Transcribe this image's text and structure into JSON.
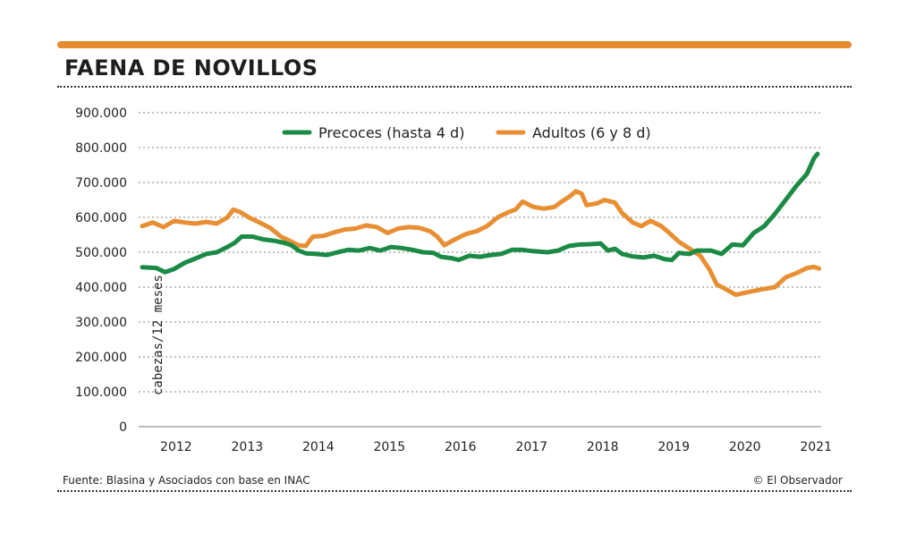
{
  "header": {
    "title": "FAENA DE NOVILLOS"
  },
  "footer": {
    "source": "Fuente: Blasina y Asociados con base en INAC",
    "credit": "© El Observador"
  },
  "colors": {
    "accent": "#e68a2e",
    "green": "#1a8a45",
    "orange": "#e88f34"
  },
  "chart_data": {
    "type": "line",
    "title": "FAENA DE NOVILLOS",
    "ylabel": "cabezas/12 meses",
    "xlabel": "",
    "ylim": [
      0,
      900000
    ],
    "xlim": [
      2011.75,
      2021.35
    ],
    "grid": true,
    "legend": "top-center",
    "y_ticks": [
      {
        "value": 0,
        "label": "0"
      },
      {
        "value": 100000,
        "label": "100.000"
      },
      {
        "value": 200000,
        "label": "200.000"
      },
      {
        "value": 300000,
        "label": "300.000"
      },
      {
        "value": 400000,
        "label": "400.000"
      },
      {
        "value": 500000,
        "label": "500.000"
      },
      {
        "value": 600000,
        "label": "600.000"
      },
      {
        "value": 700000,
        "label": "700.000"
      },
      {
        "value": 800000,
        "label": "800.000"
      },
      {
        "value": 900000,
        "label": "900.000"
      }
    ],
    "x_ticks": [
      {
        "value": 2012,
        "label": "2012"
      },
      {
        "value": 2013,
        "label": "2013"
      },
      {
        "value": 2014,
        "label": "2014"
      },
      {
        "value": 2015,
        "label": "2015"
      },
      {
        "value": 2016,
        "label": "2016"
      },
      {
        "value": 2017,
        "label": "2017"
      },
      {
        "value": 2018,
        "label": "2018"
      },
      {
        "value": 2019,
        "label": "2019"
      },
      {
        "value": 2020,
        "label": "2020"
      },
      {
        "value": 2021,
        "label": "2021"
      }
    ],
    "series": [
      {
        "name": "Precoces (hasta 4 d)",
        "color": "#1a8a45",
        "points": [
          [
            2011.8,
            457000
          ],
          [
            2012.0,
            455000
          ],
          [
            2012.12,
            443000
          ],
          [
            2012.25,
            452000
          ],
          [
            2012.4,
            470000
          ],
          [
            2012.55,
            482000
          ],
          [
            2012.7,
            495000
          ],
          [
            2012.85,
            500000
          ],
          [
            2013.0,
            515000
          ],
          [
            2013.1,
            527000
          ],
          [
            2013.2,
            545000
          ],
          [
            2013.35,
            545000
          ],
          [
            2013.5,
            537000
          ],
          [
            2013.65,
            533000
          ],
          [
            2013.8,
            527000
          ],
          [
            2013.9,
            520000
          ],
          [
            2014.0,
            505000
          ],
          [
            2014.1,
            497000
          ],
          [
            2014.25,
            495000
          ],
          [
            2014.4,
            492000
          ],
          [
            2014.55,
            500000
          ],
          [
            2014.7,
            507000
          ],
          [
            2014.85,
            505000
          ],
          [
            2015.0,
            512000
          ],
          [
            2015.15,
            505000
          ],
          [
            2015.3,
            515000
          ],
          [
            2015.45,
            512000
          ],
          [
            2015.6,
            507000
          ],
          [
            2015.75,
            500000
          ],
          [
            2015.9,
            498000
          ],
          [
            2016.0,
            487000
          ],
          [
            2016.15,
            483000
          ],
          [
            2016.25,
            478000
          ],
          [
            2016.4,
            490000
          ],
          [
            2016.55,
            487000
          ],
          [
            2016.7,
            492000
          ],
          [
            2016.85,
            495000
          ],
          [
            2017.0,
            507000
          ],
          [
            2017.15,
            507000
          ],
          [
            2017.3,
            503000
          ],
          [
            2017.5,
            500000
          ],
          [
            2017.65,
            505000
          ],
          [
            2017.8,
            518000
          ],
          [
            2017.95,
            522000
          ],
          [
            2018.1,
            523000
          ],
          [
            2018.25,
            525000
          ],
          [
            2018.35,
            505000
          ],
          [
            2018.45,
            510000
          ],
          [
            2018.55,
            495000
          ],
          [
            2018.7,
            488000
          ],
          [
            2018.85,
            485000
          ],
          [
            2019.0,
            490000
          ],
          [
            2019.15,
            480000
          ],
          [
            2019.25,
            478000
          ],
          [
            2019.35,
            498000
          ],
          [
            2019.5,
            495000
          ],
          [
            2019.6,
            505000
          ],
          [
            2019.8,
            505000
          ],
          [
            2019.95,
            495000
          ],
          [
            2020.1,
            522000
          ],
          [
            2020.25,
            520000
          ],
          [
            2020.4,
            555000
          ],
          [
            2020.55,
            575000
          ],
          [
            2020.7,
            610000
          ],
          [
            2020.85,
            650000
          ],
          [
            2021.0,
            690000
          ],
          [
            2021.15,
            725000
          ],
          [
            2021.25,
            770000
          ],
          [
            2021.3,
            782000
          ]
        ]
      },
      {
        "name": "Adultos (6 y 8 d)",
        "color": "#e88f34",
        "points": [
          [
            2011.8,
            575000
          ],
          [
            2011.95,
            585000
          ],
          [
            2012.1,
            572000
          ],
          [
            2012.25,
            590000
          ],
          [
            2012.4,
            585000
          ],
          [
            2012.55,
            582000
          ],
          [
            2012.7,
            587000
          ],
          [
            2012.85,
            582000
          ],
          [
            2013.0,
            600000
          ],
          [
            2013.08,
            622000
          ],
          [
            2013.18,
            615000
          ],
          [
            2013.3,
            600000
          ],
          [
            2013.45,
            585000
          ],
          [
            2013.6,
            570000
          ],
          [
            2013.75,
            545000
          ],
          [
            2013.9,
            530000
          ],
          [
            2014.0,
            520000
          ],
          [
            2014.1,
            518000
          ],
          [
            2014.2,
            545000
          ],
          [
            2014.35,
            547000
          ],
          [
            2014.5,
            557000
          ],
          [
            2014.65,
            565000
          ],
          [
            2014.8,
            568000
          ],
          [
            2014.95,
            577000
          ],
          [
            2015.1,
            572000
          ],
          [
            2015.25,
            555000
          ],
          [
            2015.4,
            568000
          ],
          [
            2015.55,
            572000
          ],
          [
            2015.7,
            570000
          ],
          [
            2015.85,
            560000
          ],
          [
            2015.95,
            545000
          ],
          [
            2016.05,
            520000
          ],
          [
            2016.2,
            537000
          ],
          [
            2016.35,
            552000
          ],
          [
            2016.5,
            560000
          ],
          [
            2016.65,
            575000
          ],
          [
            2016.8,
            600000
          ],
          [
            2016.95,
            615000
          ],
          [
            2017.05,
            622000
          ],
          [
            2017.15,
            645000
          ],
          [
            2017.3,
            630000
          ],
          [
            2017.45,
            625000
          ],
          [
            2017.6,
            630000
          ],
          [
            2017.7,
            645000
          ],
          [
            2017.8,
            658000
          ],
          [
            2017.9,
            675000
          ],
          [
            2017.98,
            668000
          ],
          [
            2018.05,
            635000
          ],
          [
            2018.2,
            640000
          ],
          [
            2018.3,
            650000
          ],
          [
            2018.45,
            642000
          ],
          [
            2018.55,
            612000
          ],
          [
            2018.7,
            585000
          ],
          [
            2018.82,
            575000
          ],
          [
            2018.95,
            590000
          ],
          [
            2019.1,
            575000
          ],
          [
            2019.2,
            558000
          ],
          [
            2019.35,
            530000
          ],
          [
            2019.5,
            510000
          ],
          [
            2019.65,
            490000
          ],
          [
            2019.78,
            450000
          ],
          [
            2019.88,
            408000
          ],
          [
            2020.0,
            395000
          ],
          [
            2020.15,
            378000
          ],
          [
            2020.3,
            385000
          ],
          [
            2020.5,
            393000
          ],
          [
            2020.7,
            400000
          ],
          [
            2020.85,
            428000
          ],
          [
            2021.0,
            440000
          ],
          [
            2021.15,
            455000
          ],
          [
            2021.25,
            458000
          ],
          [
            2021.32,
            453000
          ]
        ]
      }
    ]
  }
}
